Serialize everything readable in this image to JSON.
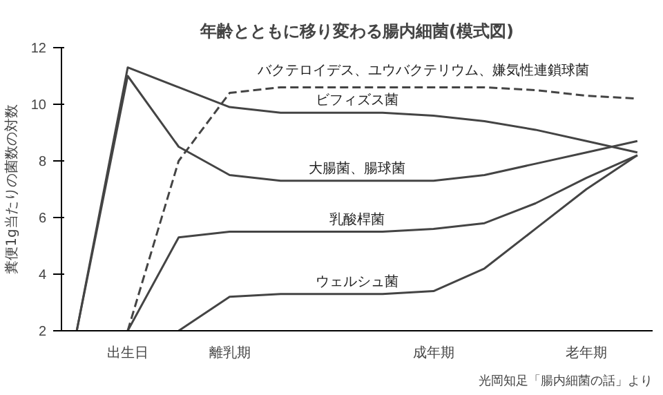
{
  "chart_data": {
    "type": "line",
    "title": "年齢とともに移り変わる腸内細菌(模式図)",
    "ylabel": "糞便1g当たりの菌数の対数",
    "categories": [
      null,
      "出生日",
      null,
      "離乳期",
      null,
      null,
      null,
      "成年期",
      null,
      null,
      "老年期",
      null
    ],
    "ylim": [
      2,
      12
    ],
    "yticks": [
      2,
      4,
      6,
      8,
      10,
      12
    ],
    "grid": false,
    "series": [
      {
        "name": "バクテロイデス、ユウバクテリウム、嫌気性連鎖球菌",
        "color": "#444444",
        "line_style": "dashed",
        "values": [
          null,
          2,
          8,
          10.4,
          10.6,
          10.6,
          10.6,
          10.6,
          10.6,
          10.5,
          10.3,
          10.2
        ]
      },
      {
        "name": "ビフィズス菌",
        "color": "#444444",
        "values": [
          2,
          11.3,
          10.6,
          9.9,
          9.7,
          9.7,
          9.7,
          9.6,
          9.4,
          9.1,
          8.7,
          8.3
        ]
      },
      {
        "name": "大腸菌、腸球菌",
        "color": "#444444",
        "values": [
          2,
          11,
          8.5,
          7.5,
          7.3,
          7.3,
          7.3,
          7.3,
          7.5,
          7.9,
          8.3,
          8.7
        ]
      },
      {
        "name": "乳酸桿菌",
        "color": "#444444",
        "values": [
          null,
          2,
          5.3,
          5.5,
          5.5,
          5.5,
          5.5,
          5.6,
          5.8,
          6.5,
          7.4,
          8.2
        ]
      },
      {
        "name": "ウェルシュ菌",
        "color": "#444444",
        "values": [
          null,
          null,
          2,
          3.2,
          3.3,
          3.3,
          3.3,
          3.4,
          4.2,
          5.6,
          7.0,
          8.2
        ]
      }
    ],
    "annotations": [
      "光岡知足「腸内細菌の話」より"
    ]
  }
}
